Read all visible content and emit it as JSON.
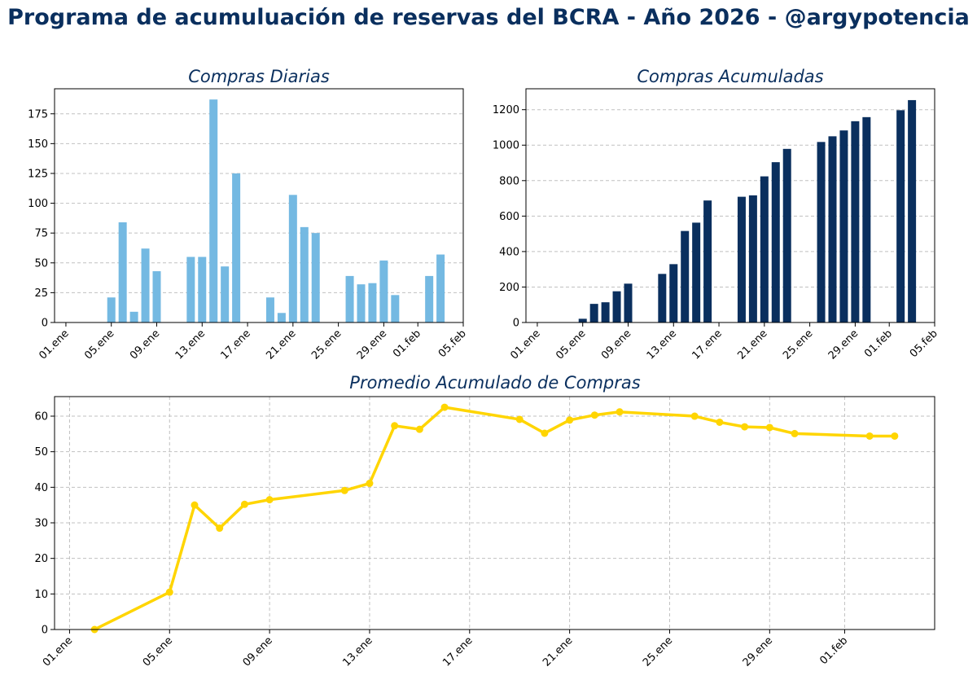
{
  "page": {
    "title": "Programa de acumuluación de reservas del BCRA - Año 2026 - @argypotencia"
  },
  "colors": {
    "daily": "#74b9e2",
    "cumulative": "#0a2f5e",
    "average": "#ffd500",
    "title": "#0a2f5e"
  },
  "chart_data": [
    {
      "type": "bar",
      "title": "Compras Diarias",
      "xlabel": "",
      "ylabel": "",
      "x_ticks": [
        "01.ene",
        "05.ene",
        "09.ene",
        "13.ene",
        "17.ene",
        "21.ene",
        "25.ene",
        "29.ene",
        "01.feb",
        "05.feb"
      ],
      "x_tick_days": [
        0,
        4,
        8,
        12,
        16,
        20,
        24,
        28,
        31,
        35
      ],
      "xlim_days": [
        -1,
        35
      ],
      "y_ticks": [
        0,
        25,
        50,
        75,
        100,
        125,
        150,
        175
      ],
      "ylim": [
        0,
        196
      ],
      "grid": "horizontal",
      "days": [
        4,
        5,
        6,
        7,
        8,
        11,
        12,
        13,
        14,
        15,
        18,
        19,
        20,
        21,
        22,
        25,
        26,
        27,
        28,
        29,
        32,
        33
      ],
      "values": [
        21,
        84,
        9,
        62,
        43,
        55,
        55,
        187,
        47,
        125,
        21,
        8,
        107,
        80,
        75,
        39,
        32,
        33,
        52,
        23,
        39,
        57
      ]
    },
    {
      "type": "bar",
      "title": "Compras Acumuladas",
      "xlabel": "",
      "ylabel": "",
      "x_ticks": [
        "01.ene",
        "05.ene",
        "09.ene",
        "13.ene",
        "17.ene",
        "21.ene",
        "25.ene",
        "29.ene",
        "01.feb",
        "05.feb"
      ],
      "x_tick_days": [
        0,
        4,
        8,
        12,
        16,
        20,
        24,
        28,
        31,
        35
      ],
      "xlim_days": [
        -1,
        35
      ],
      "y_ticks": [
        0,
        200,
        400,
        600,
        800,
        1000,
        1200
      ],
      "ylim": [
        0,
        1318
      ],
      "grid": "horizontal",
      "days": [
        4,
        5,
        6,
        7,
        8,
        11,
        12,
        13,
        14,
        15,
        18,
        19,
        20,
        21,
        22,
        25,
        26,
        27,
        28,
        29,
        32,
        33
      ],
      "values": [
        21,
        105,
        114,
        176,
        219,
        274,
        329,
        516,
        563,
        688,
        709,
        717,
        824,
        904,
        979,
        1018,
        1050,
        1083,
        1135,
        1158,
        1197,
        1254
      ]
    },
    {
      "type": "line",
      "title": "Promedio Acumulado de Compras",
      "xlabel": "",
      "ylabel": "",
      "x_ticks": [
        "01.ene",
        "05.ene",
        "09.ene",
        "13.ene",
        "17.ene",
        "21.ene",
        "25.ene",
        "29.ene",
        "01.feb"
      ],
      "x_tick_days": [
        0,
        4,
        8,
        12,
        16,
        20,
        24,
        28,
        31
      ],
      "xlim_days": [
        -0.6,
        34.6
      ],
      "y_ticks": [
        0,
        10,
        20,
        30,
        40,
        50,
        60
      ],
      "ylim": [
        0,
        65.5
      ],
      "grid": "both",
      "days": [
        1,
        4,
        5,
        6,
        7,
        8,
        11,
        12,
        13,
        14,
        15,
        18,
        19,
        20,
        21,
        22,
        25,
        26,
        27,
        28,
        29,
        32,
        33
      ],
      "values": [
        0,
        10.5,
        35,
        28.5,
        35.2,
        36.5,
        39.1,
        41.1,
        57.3,
        56.3,
        62.5,
        59.1,
        55.2,
        58.9,
        60.3,
        61.2,
        60.0,
        58.3,
        57.0,
        56.8,
        55.1,
        54.4,
        54.4
      ]
    }
  ]
}
